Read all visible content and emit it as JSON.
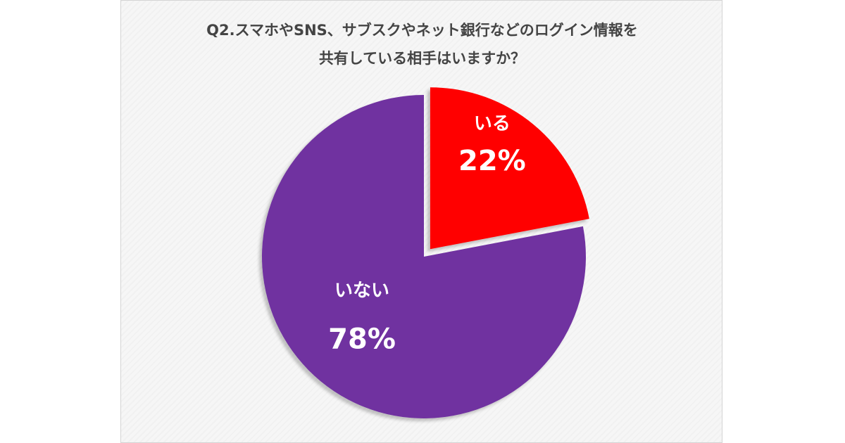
{
  "chart_data": {
    "type": "pie",
    "title_lines": [
      "Q2.スマホやSNS、サブスクやネット銀行などのログイン情報を",
      "共有している相手はいますか？"
    ],
    "slices": [
      {
        "label": "いる",
        "value": 22,
        "value_label": "22%",
        "color": "#ff0000",
        "exploded": true
      },
      {
        "label": "いない",
        "value": 78,
        "value_label": "78%",
        "color": "#7030a0",
        "exploded": false
      }
    ],
    "start_angle_deg": 0,
    "direction": "clockwise"
  }
}
